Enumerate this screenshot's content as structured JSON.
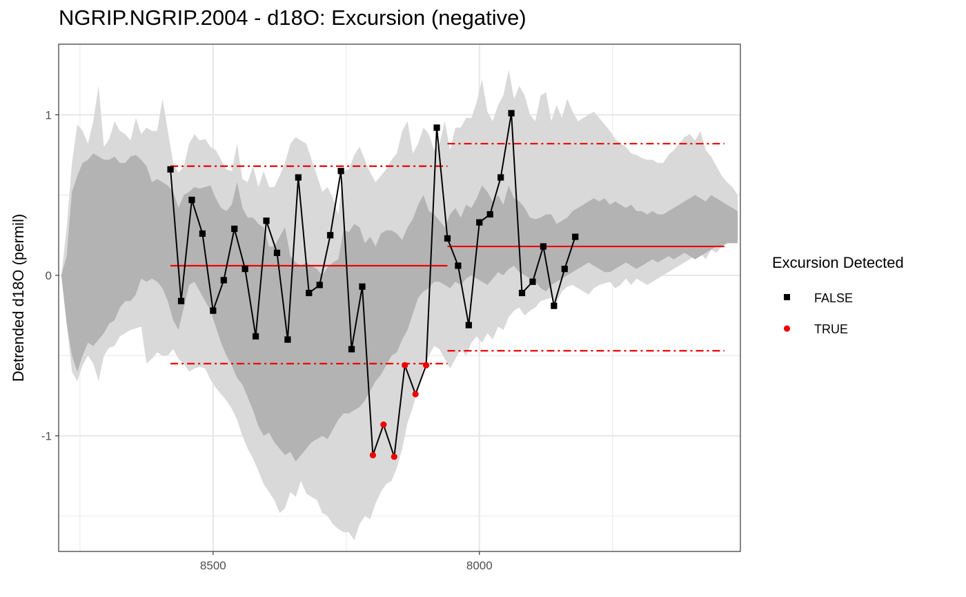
{
  "title": "NGRIP.NGRIP.2004 - d18O: Excursion (negative)",
  "chart_data": {
    "type": "line",
    "title": "NGRIP.NGRIP.2004 - d18O: Excursion (negative)",
    "xlabel": "",
    "ylabel": "Detrended d18O (permil)",
    "x_reversed": true,
    "xlim": [
      8790,
      7510
    ],
    "ylim": [
      -1.72,
      1.44
    ],
    "x_ticks": [
      8500,
      8000
    ],
    "x_tick_labels": [
      "8500",
      "8000"
    ],
    "y_ticks": [
      -1,
      0,
      1
    ],
    "y_tick_labels": [
      "-1",
      "0",
      "1"
    ],
    "grid": true,
    "legend": {
      "title": "Excursion Detected",
      "position": "right",
      "entries": [
        {
          "label": "FALSE",
          "color": "#000000",
          "shape": "square"
        },
        {
          "label": "TRUE",
          "color": "#ee0000",
          "shape": "circle"
        }
      ]
    },
    "colors": {
      "outer_band": "#d9d9d9",
      "inner_band": "#b3b3b3",
      "line": "#000000",
      "reference": "#ee0000"
    },
    "series": [
      {
        "x": [
          8580,
          8560,
          8540,
          8520,
          8500,
          8480,
          8460,
          8440,
          8420,
          8400,
          8380,
          8360,
          8340,
          8320,
          8300,
          8280,
          8260,
          8240,
          8220,
          8200,
          8180,
          8160,
          8140,
          8120,
          8100,
          8080,
          8060,
          8040,
          8020,
          8000,
          7980,
          7960,
          7940,
          7920,
          7900,
          7880,
          7860,
          7840,
          7820
        ],
        "y": [
          0.66,
          -0.16,
          0.47,
          0.26,
          -0.22,
          -0.03,
          0.29,
          0.04,
          -0.38,
          0.34,
          0.14,
          -0.4,
          0.61,
          -0.11,
          -0.06,
          0.25,
          0.65,
          -0.46,
          -0.07,
          -1.12,
          -0.93,
          -1.13,
          -0.56,
          -0.74,
          -0.56,
          0.92,
          0.23,
          0.06,
          -0.31,
          0.33,
          0.38,
          0.61,
          1.01,
          -0.11,
          -0.04,
          0.18,
          -0.19,
          0.04,
          0.24
        ],
        "excursion": [
          false,
          false,
          false,
          false,
          false,
          false,
          false,
          false,
          false,
          false,
          false,
          false,
          false,
          false,
          false,
          false,
          false,
          false,
          false,
          true,
          true,
          true,
          true,
          true,
          true,
          false,
          false,
          false,
          false,
          false,
          false,
          false,
          false,
          false,
          false,
          false,
          false,
          false,
          false
        ]
      }
    ],
    "bands": {
      "x": [
        8800,
        8785,
        8775,
        8765,
        8755,
        8745,
        8735,
        8725,
        8715,
        8705,
        8695,
        8685,
        8675,
        8665,
        8655,
        8645,
        8635,
        8625,
        8615,
        8605,
        8595,
        8585,
        8575,
        8565,
        8555,
        8545,
        8535,
        8525,
        8515,
        8505,
        8495,
        8485,
        8475,
        8465,
        8455,
        8445,
        8435,
        8425,
        8415,
        8405,
        8395,
        8385,
        8375,
        8365,
        8355,
        8345,
        8335,
        8325,
        8315,
        8305,
        8295,
        8285,
        8275,
        8265,
        8255,
        8245,
        8235,
        8225,
        8215,
        8205,
        8195,
        8185,
        8175,
        8165,
        8155,
        8145,
        8135,
        8125,
        8115,
        8105,
        8095,
        8085,
        8075,
        8065,
        8055,
        8045,
        8035,
        8025,
        8015,
        8005,
        7995,
        7985,
        7975,
        7965,
        7955,
        7945,
        7935,
        7925,
        7915,
        7905,
        7895,
        7885,
        7875,
        7865,
        7855,
        7845,
        7835,
        7825,
        7815,
        7805,
        7795,
        7785,
        7775,
        7765,
        7755,
        7745,
        7735,
        7725,
        7715,
        7705,
        7695,
        7685,
        7675,
        7665,
        7655,
        7645,
        7635,
        7625,
        7615,
        7605,
        7595,
        7585,
        7575,
        7565,
        7555,
        7545,
        7535,
        7525,
        7515
      ],
      "outer_upper": [
        0.68,
        0.0,
        0.3,
        0.7,
        0.94,
        0.9,
        0.82,
        0.96,
        1.18,
        0.8,
        0.85,
        0.96,
        0.9,
        0.88,
        0.84,
        0.98,
        0.88,
        0.92,
        0.9,
        0.9,
        1.1,
        0.9,
        0.7,
        0.64,
        0.68,
        0.82,
        0.88,
        0.84,
        0.85,
        0.8,
        0.78,
        0.72,
        0.66,
        0.65,
        0.82,
        0.6,
        0.58,
        0.68,
        0.55,
        0.65,
        0.55,
        0.55,
        0.62,
        0.7,
        0.82,
        0.86,
        0.84,
        0.82,
        0.72,
        0.62,
        0.52,
        0.55,
        0.48,
        0.38,
        0.65,
        0.66,
        0.75,
        0.8,
        0.72,
        0.64,
        0.58,
        0.62,
        0.66,
        0.72,
        0.76,
        0.9,
        0.96,
        0.76,
        0.82,
        0.92,
        0.88,
        0.78,
        0.82,
        0.96,
        0.78,
        0.92,
        0.92,
        0.98,
        0.98,
        1.08,
        1.22,
        1.02,
        0.96,
        1.06,
        1.12,
        1.28,
        1.1,
        1.18,
        1.12,
        1.0,
        0.96,
        1.12,
        1.14,
        0.96,
        1.06,
        0.98,
        1.1,
        1.02,
        0.96,
        0.98,
        1.0,
        1.02,
        0.98,
        0.94,
        0.9,
        0.85,
        0.82,
        0.8,
        0.76,
        0.75,
        0.73,
        0.72,
        0.72,
        0.7,
        0.7,
        0.75,
        0.78,
        0.82,
        0.86,
        0.88,
        0.84,
        0.9,
        0.78,
        0.74,
        0.68,
        0.62,
        0.58,
        0.55,
        0.5
      ],
      "outer_lower": [
        0.68,
        0.0,
        -0.3,
        -0.6,
        -0.66,
        -0.56,
        -0.5,
        -0.55,
        -0.66,
        -0.5,
        -0.45,
        -0.44,
        -0.38,
        -0.36,
        -0.34,
        -0.33,
        -0.32,
        -0.55,
        -0.52,
        -0.48,
        -0.5,
        -0.5,
        -0.46,
        -0.52,
        -0.55,
        -0.6,
        -0.58,
        -0.57,
        -0.58,
        -0.65,
        -0.7,
        -0.74,
        -0.78,
        -0.83,
        -0.9,
        -1.0,
        -1.08,
        -1.14,
        -1.22,
        -1.3,
        -1.35,
        -1.4,
        -1.48,
        -1.45,
        -1.35,
        -1.38,
        -1.28,
        -1.36,
        -1.38,
        -1.4,
        -1.48,
        -1.5,
        -1.55,
        -1.58,
        -1.6,
        -1.6,
        -1.65,
        -1.55,
        -1.5,
        -1.52,
        -1.42,
        -1.35,
        -1.3,
        -1.28,
        -1.2,
        -1.08,
        -0.92,
        -0.82,
        -0.7,
        -0.58,
        -0.5,
        -0.44,
        -0.46,
        -0.52,
        -0.58,
        -0.52,
        -0.46,
        -0.5,
        -0.42,
        -0.38,
        -0.42,
        -0.36,
        -0.4,
        -0.32,
        -0.34,
        -0.26,
        -0.22,
        -0.2,
        -0.25,
        -0.22,
        -0.2,
        -0.16,
        -0.15,
        -0.14,
        -0.17,
        -0.1,
        -0.07,
        -0.06,
        -0.08,
        -0.1,
        -0.12,
        -0.08,
        -0.06,
        -0.05,
        -0.04,
        -0.08,
        -0.06,
        -0.02,
        -0.06,
        -0.02,
        -0.04,
        -0.06,
        -0.04,
        -0.02,
        0.0,
        0.02,
        0.04,
        0.06,
        0.08,
        0.1,
        0.12,
        0.14,
        0.1,
        0.16,
        0.14,
        0.18,
        0.2,
        0.22,
        0.22
      ],
      "inner_upper": [
        0.68,
        0.0,
        0.12,
        0.52,
        0.62,
        0.7,
        0.72,
        0.76,
        0.74,
        0.72,
        0.72,
        0.74,
        0.7,
        0.7,
        0.74,
        0.75,
        0.72,
        0.68,
        0.58,
        0.6,
        0.58,
        0.56,
        0.52,
        0.42,
        0.5,
        0.52,
        0.55,
        0.54,
        0.55,
        0.56,
        0.48,
        0.42,
        0.4,
        0.44,
        0.58,
        0.42,
        0.36,
        0.36,
        0.32,
        0.3,
        0.18,
        0.18,
        0.24,
        0.3,
        0.12,
        0.08,
        0.06,
        0.08,
        0.06,
        0.04,
        0.0,
        0.05,
        0.08,
        0.1,
        0.28,
        0.27,
        0.32,
        0.3,
        0.2,
        0.24,
        0.18,
        0.26,
        0.28,
        0.28,
        0.26,
        0.22,
        0.3,
        0.35,
        0.44,
        0.5,
        0.4,
        0.38,
        0.34,
        0.3,
        0.38,
        0.42,
        0.36,
        0.44,
        0.42,
        0.48,
        0.56,
        0.52,
        0.46,
        0.5,
        0.44,
        0.56,
        0.48,
        0.46,
        0.42,
        0.36,
        0.35,
        0.36,
        0.38,
        0.38,
        0.32,
        0.34,
        0.36,
        0.4,
        0.42,
        0.44,
        0.46,
        0.48,
        0.46,
        0.48,
        0.44,
        0.46,
        0.44,
        0.42,
        0.44,
        0.4,
        0.4,
        0.38,
        0.4,
        0.38,
        0.38,
        0.4,
        0.42,
        0.44,
        0.46,
        0.48,
        0.5,
        0.48,
        0.46,
        0.5,
        0.48,
        0.46,
        0.44,
        0.42,
        0.4
      ],
      "inner_lower": [
        0.68,
        0.0,
        -0.3,
        -0.5,
        -0.6,
        -0.5,
        -0.42,
        -0.44,
        -0.4,
        -0.36,
        -0.3,
        -0.28,
        -0.2,
        -0.16,
        -0.16,
        -0.12,
        -0.02,
        -0.04,
        -0.02,
        -0.04,
        -0.08,
        -0.16,
        -0.28,
        -0.34,
        -0.2,
        -0.06,
        -0.04,
        -0.1,
        -0.16,
        -0.22,
        -0.32,
        -0.42,
        -0.5,
        -0.56,
        -0.64,
        -0.68,
        -0.76,
        -0.84,
        -0.94,
        -1.0,
        -0.98,
        -1.04,
        -1.08,
        -1.12,
        -1.1,
        -1.16,
        -1.12,
        -1.08,
        -1.04,
        -1.02,
        -1.0,
        -1.02,
        -0.96,
        -0.9,
        -0.86,
        -0.86,
        -0.84,
        -0.82,
        -0.78,
        -0.72,
        -0.66,
        -0.62,
        -0.56,
        -0.5,
        -0.48,
        -0.4,
        -0.34,
        -0.24,
        -0.14,
        -0.1,
        -0.08,
        -0.04,
        -0.04,
        -0.06,
        -0.08,
        -0.04,
        -0.06,
        -0.02,
        0.0,
        -0.02,
        -0.04,
        -0.06,
        -0.02,
        0.02,
        0.0,
        0.04,
        0.06,
        0.02,
        0.0,
        -0.02,
        -0.04,
        -0.08,
        -0.1,
        -0.06,
        -0.04,
        -0.02,
        0.0,
        0.02,
        0.04,
        0.06,
        0.08,
        0.06,
        0.04,
        0.02,
        0.02,
        0.04,
        0.06,
        0.08,
        0.06,
        0.04,
        0.06,
        0.08,
        0.1,
        0.08,
        0.1,
        0.12,
        0.1,
        0.12,
        0.14,
        0.12,
        0.1,
        0.12,
        0.14,
        0.16,
        0.18,
        0.18,
        0.2,
        0.2,
        0.2
      ]
    },
    "reference_segments": [
      {
        "kind": "mean",
        "x": [
          8580,
          8060
        ],
        "y": 0.06
      },
      {
        "kind": "upper",
        "x": [
          8580,
          8060
        ],
        "y": 0.68
      },
      {
        "kind": "lower",
        "x": [
          8580,
          8060
        ],
        "y": -0.55
      },
      {
        "kind": "mean",
        "x": [
          8060,
          7540
        ],
        "y": 0.18
      },
      {
        "kind": "upper",
        "x": [
          8060,
          7540
        ],
        "y": 0.82
      },
      {
        "kind": "lower",
        "x": [
          8060,
          7540
        ],
        "y": -0.47
      }
    ]
  }
}
